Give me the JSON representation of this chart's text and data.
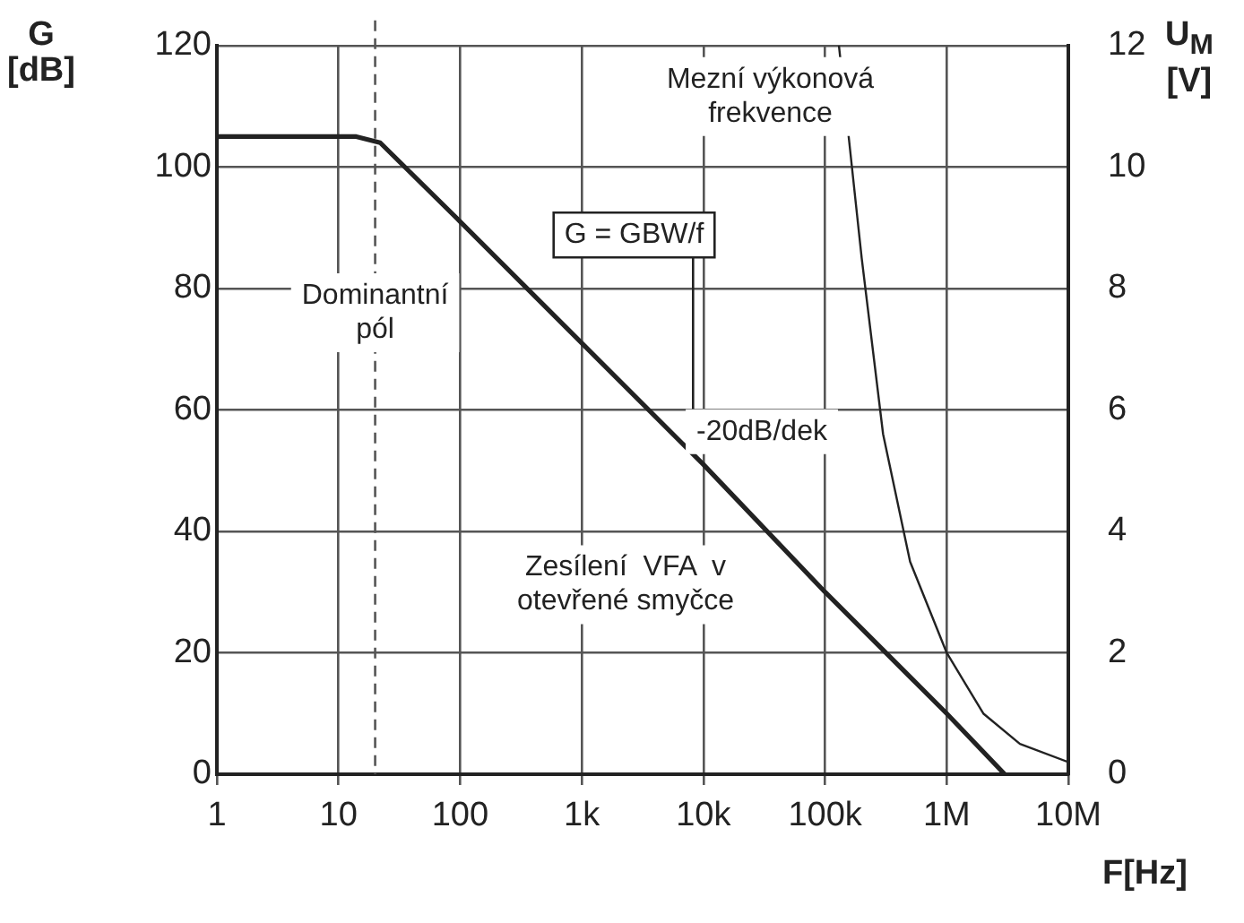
{
  "chart_data": {
    "type": "line",
    "xlabel": "F[Hz]",
    "ylabel": "G\n[dB]",
    "y2label": "U$_{M}$\n[V]",
    "log": "x",
    "xlim": [
      1,
      10000000
    ],
    "xticks": [
      1,
      10,
      100,
      {
        "value": 1000,
        "label": "1k"
      },
      {
        "value": 10000,
        "label": "10k"
      },
      {
        "value": 100000,
        "label": "100k"
      },
      {
        "value": 1000000,
        "label": "1M"
      },
      {
        "value": 10000000,
        "label": "10M"
      }
    ],
    "ylim": [
      0,
      120
    ],
    "yticks": [
      0,
      20,
      40,
      60,
      80,
      100,
      120
    ],
    "y2lim": [
      0,
      12
    ],
    "y2ticks": [
      0,
      2,
      4,
      6,
      8,
      10,
      12
    ],
    "grid": true,
    "legend": false,
    "marker": "none",
    "line_style": "solid",
    "series": [
      {
        "color": "#222222",
        "x": [
          1,
          14,
          22,
          100,
          1000,
          10000,
          100000,
          1000000,
          3000000
        ],
        "values": [
          105,
          105,
          104,
          91,
          71,
          51,
          30,
          10,
          0
        ]
      },
      {
        "color": "#222222",
        "axis": "y2",
        "x": [
          130000,
          200000,
          300000,
          500000,
          1000000,
          2000000,
          4000000,
          10000000
        ],
        "values": [
          12,
          8.5,
          5.6,
          3.5,
          2,
          1,
          0.5,
          0.2
        ]
      }
    ],
    "ref_lines": [
      {
        "axis": "x",
        "value": 20,
        "line_style": "dashed",
        "color": "#555555"
      }
    ],
    "annotations": [
      {
        "text": "Dominantní\npól",
        "x": 20,
        "y": 76
      },
      "Mezní výkonová\nfrekvence",
      "G = GBW/f",
      "-20dB/dek",
      "Zesílení  VFA  v\notevřené smyčce"
    ]
  }
}
